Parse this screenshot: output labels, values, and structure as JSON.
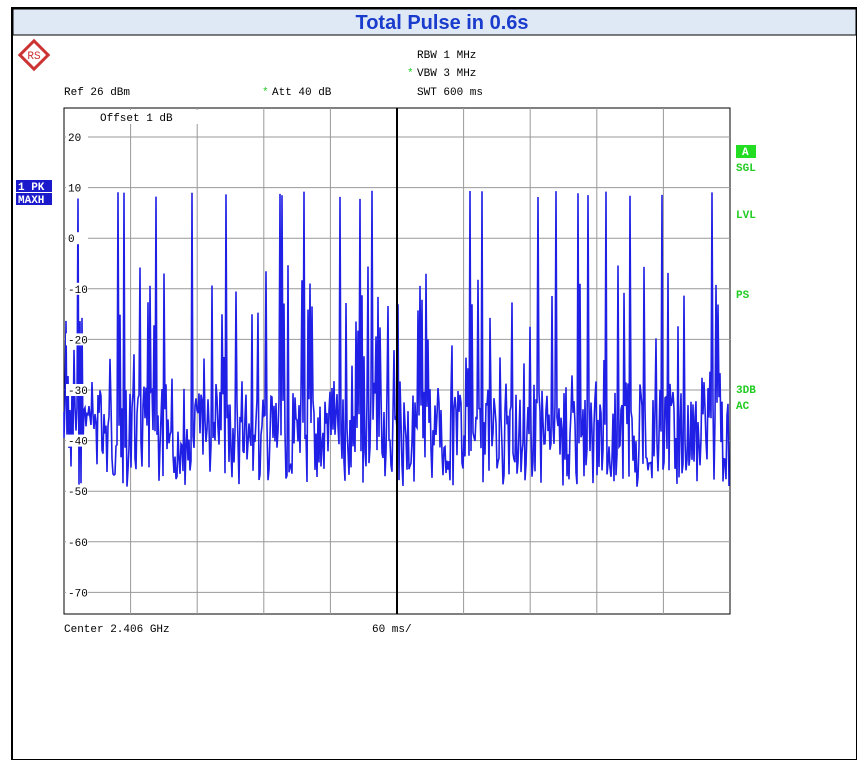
{
  "header": {
    "title": "Total Pulse in 0.6s"
  },
  "settings": {
    "rbw": "RBW 1 MHz",
    "vbw_star": "*",
    "vbw": "VBW 3 MHz",
    "ref": "Ref 26 dBm",
    "att_star": "*",
    "att": "Att 40 dB",
    "swt": "SWT 600 ms",
    "offset": "Offset 1 dB"
  },
  "trace_labels": [
    "1 PK",
    "MAXH"
  ],
  "side_labels": [
    "A",
    "SGL",
    "LVL",
    "PS",
    "3DB",
    "AC"
  ],
  "y_axis": {
    "labels": [
      "20",
      "10",
      "0",
      "-10",
      "-20",
      "-30",
      "-40",
      "-50",
      "-60",
      "-70"
    ]
  },
  "footer": {
    "center": "Center 2.406 GHz",
    "span": "60 ms/"
  }
}
